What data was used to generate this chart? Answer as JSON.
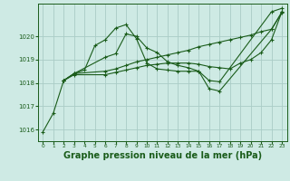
{
  "background_color": "#ceeae4",
  "grid_color": "#aaccc6",
  "line_color": "#1a5c1a",
  "marker_color": "#1a5c1a",
  "xlabel": "Graphe pression niveau de la mer (hPa)",
  "xlabel_fontsize": 7.0,
  "xlim": [
    -0.5,
    23.5
  ],
  "ylim": [
    1015.5,
    1021.4
  ],
  "yticks": [
    1016,
    1017,
    1018,
    1019,
    1020
  ],
  "xticks": [
    0,
    1,
    2,
    3,
    4,
    5,
    6,
    7,
    8,
    9,
    10,
    11,
    12,
    13,
    14,
    15,
    16,
    17,
    18,
    19,
    20,
    21,
    22,
    23
  ],
  "series": [
    {
      "x": [
        0,
        1,
        2,
        3,
        4,
        5,
        6,
        7,
        8,
        9,
        10,
        11,
        12,
        13,
        14,
        15,
        16,
        17,
        22,
        23
      ],
      "y": [
        1015.9,
        1016.7,
        1018.1,
        1018.4,
        1018.55,
        1019.6,
        1019.85,
        1020.35,
        1020.5,
        1019.9,
        1018.85,
        1018.6,
        1018.55,
        1018.5,
        1018.5,
        1018.5,
        1018.1,
        1018.05,
        1021.05,
        1021.2
      ]
    },
    {
      "x": [
        2,
        3,
        6,
        7,
        8,
        9,
        10,
        11,
        12,
        13,
        14,
        15,
        16,
        17,
        22,
        23
      ],
      "y": [
        1018.1,
        1018.4,
        1019.1,
        1019.25,
        1020.1,
        1020.0,
        1019.5,
        1019.3,
        1018.9,
        1018.75,
        1018.65,
        1018.5,
        1017.75,
        1017.65,
        1020.3,
        1021.05
      ]
    },
    {
      "x": [
        2,
        3,
        6,
        7,
        8,
        9,
        10,
        11,
        12,
        13,
        14,
        15,
        16,
        17,
        18,
        19,
        20,
        21,
        22,
        23
      ],
      "y": [
        1018.1,
        1018.4,
        1018.5,
        1018.6,
        1018.75,
        1018.9,
        1019.0,
        1019.1,
        1019.2,
        1019.3,
        1019.4,
        1019.55,
        1019.65,
        1019.75,
        1019.85,
        1019.95,
        1020.05,
        1020.2,
        1020.3,
        1021.0
      ]
    },
    {
      "x": [
        2,
        3,
        6,
        7,
        8,
        9,
        10,
        11,
        12,
        13,
        14,
        15,
        16,
        17,
        18,
        19,
        20,
        21,
        22,
        23
      ],
      "y": [
        1018.1,
        1018.35,
        1018.35,
        1018.45,
        1018.55,
        1018.65,
        1018.75,
        1018.8,
        1018.85,
        1018.85,
        1018.85,
        1018.8,
        1018.7,
        1018.65,
        1018.6,
        1018.85,
        1019.0,
        1019.3,
        1019.85,
        1021.05
      ]
    }
  ]
}
